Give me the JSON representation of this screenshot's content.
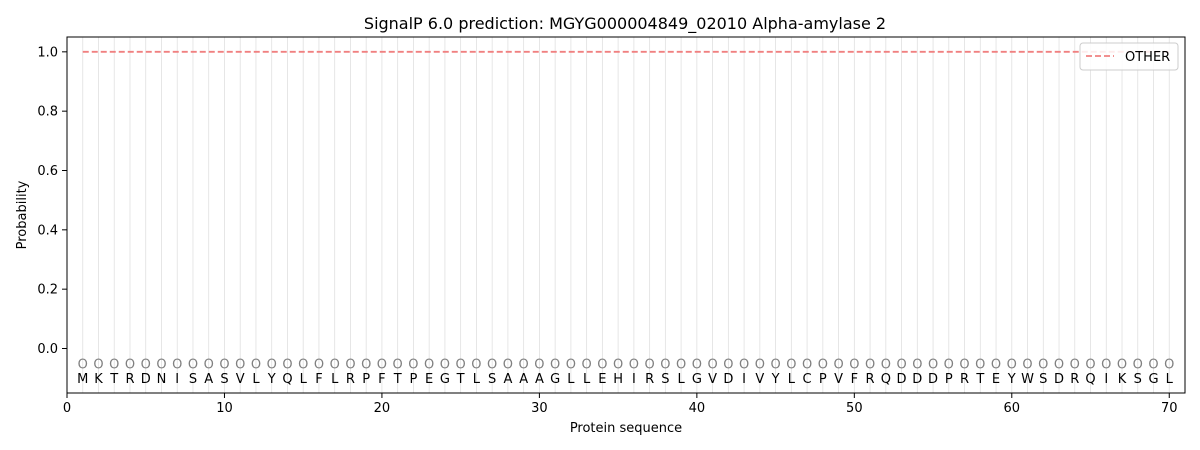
{
  "chart_data": {
    "type": "line",
    "title": "SignalP 6.0 prediction: MGYG000004849_02010 Alpha-amylase 2",
    "xlabel": "Protein sequence",
    "ylabel": "Probability",
    "xlim": [
      0,
      71
    ],
    "ylim": [
      -0.15,
      1.05
    ],
    "xticks": [
      0,
      10,
      20,
      30,
      40,
      50,
      60,
      70
    ],
    "yticks": [
      0.0,
      0.2,
      0.4,
      0.6,
      0.8,
      1.0
    ],
    "xtick_labels": [
      "0",
      "10",
      "20",
      "30",
      "40",
      "50",
      "60",
      "70"
    ],
    "ytick_labels": [
      "0.0",
      "0.2",
      "0.4",
      "0.6",
      "0.8",
      "1.0"
    ],
    "grid": "vertical lines at each residue",
    "legend_position": "top-right",
    "sequence": "MKTRDNISASVLYQLFLRPFTPEGTLSAAAGLLEHIRSLGVDIVYLCPVFRQDDDPRTEYWSDRQIKSGL",
    "annotation_marker": "O",
    "series": [
      {
        "name": "OTHER",
        "style": "dashed",
        "color": "#f08080",
        "x_start": 1,
        "x_end": 70,
        "value": 1.0
      }
    ]
  }
}
